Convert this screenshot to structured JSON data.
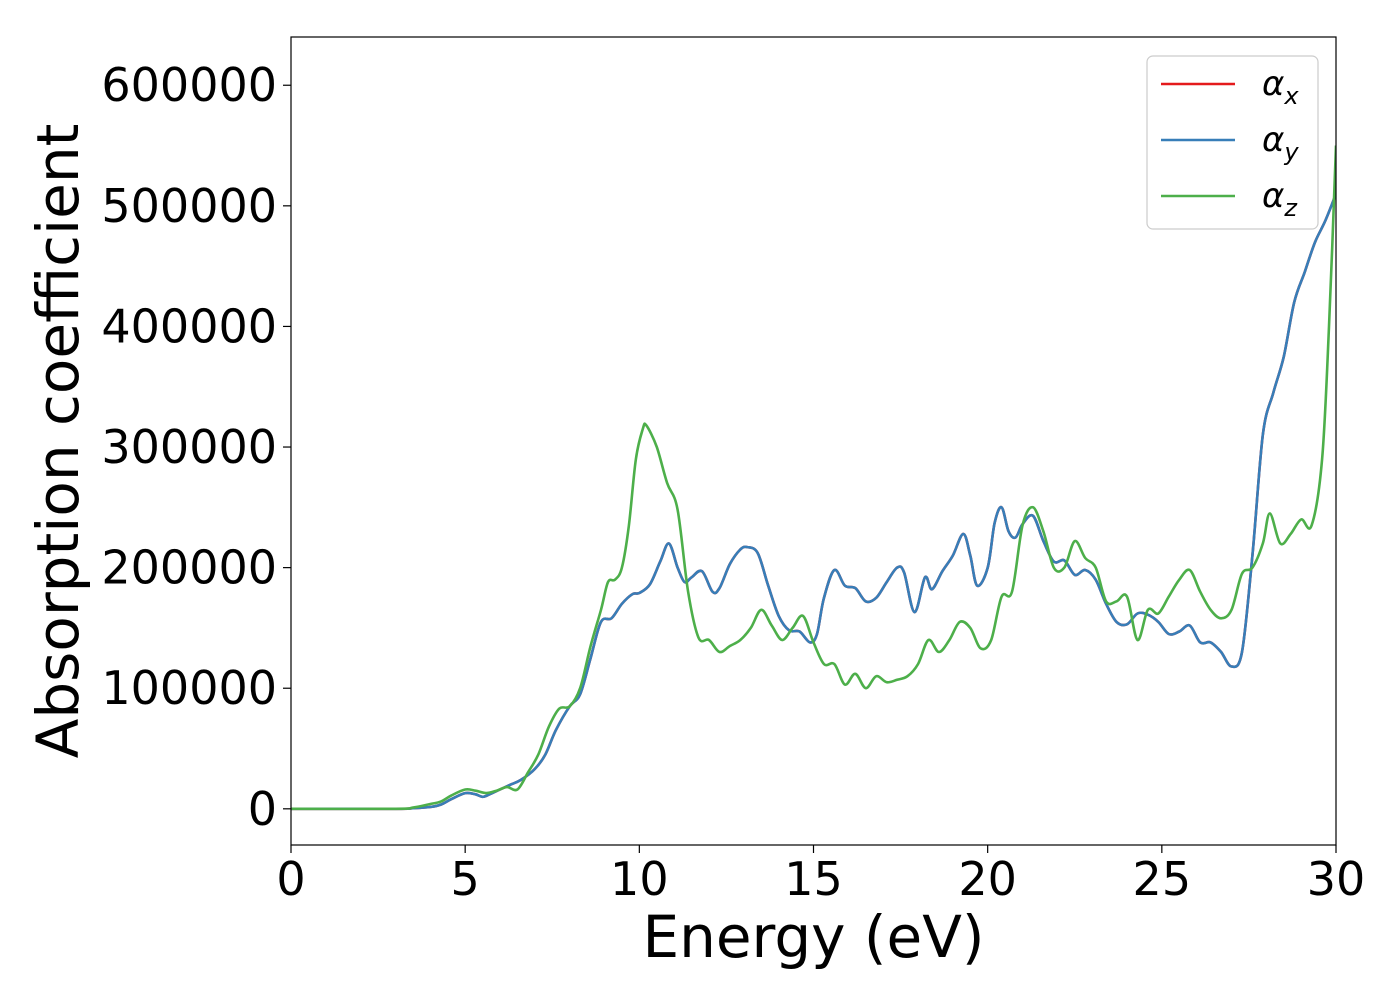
{
  "chart_data": {
    "type": "line",
    "title": "",
    "xlabel": "Energy (eV)",
    "ylabel": "Absorption coefficient",
    "xlim": [
      0,
      30
    ],
    "ylim": [
      -30000,
      640000
    ],
    "xticks": [
      0,
      5,
      10,
      15,
      20,
      25,
      30
    ],
    "xtick_labels": [
      "0",
      "5",
      "10",
      "15",
      "20",
      "25",
      "30"
    ],
    "yticks": [
      0,
      100000,
      200000,
      300000,
      400000,
      500000,
      600000
    ],
    "ytick_labels": [
      "0",
      "100000",
      "200000",
      "300000",
      "400000",
      "500000",
      "600000"
    ],
    "grid": false,
    "legend_position": "top-right",
    "series": [
      {
        "name": "α",
        "subscript": "x",
        "color": "#e41a1c",
        "x": [
          0,
          3,
          3.5,
          4,
          4.3,
          4.6,
          5,
          5.3,
          5.5,
          5.7,
          6,
          6.3,
          6.6,
          7,
          7.3,
          7.6,
          8,
          8.3,
          8.6,
          8.9,
          9.2,
          9.5,
          9.8,
          10,
          10.3,
          10.6,
          10.85,
          11.1,
          11.3,
          11.5,
          11.8,
          12.1,
          12.3,
          12.6,
          12.9,
          13.1,
          13.4,
          13.7,
          14,
          14.3,
          14.6,
          14.9,
          15.1,
          15.3,
          15.6,
          15.9,
          16.2,
          16.5,
          16.8,
          17.1,
          17.4,
          17.6,
          17.9,
          18.2,
          18.4,
          18.7,
          19,
          19.3,
          19.5,
          19.7,
          20,
          20.2,
          20.4,
          20.6,
          20.8,
          21,
          21.3,
          21.6,
          21.9,
          22.2,
          22.5,
          22.8,
          23.1,
          23.4,
          23.7,
          24,
          24.3,
          24.6,
          24.9,
          25.2,
          25.5,
          25.8,
          26.1,
          26.4,
          26.7,
          27,
          27.3,
          27.6,
          27.9,
          28.2,
          28.5,
          28.8,
          29.1,
          29.4,
          29.7,
          30
        ],
        "y": [
          0,
          0,
          500,
          1500,
          3500,
          8000,
          13000,
          12000,
          10000,
          12000,
          16000,
          20000,
          24000,
          33000,
          45000,
          65000,
          85000,
          95000,
          125000,
          155000,
          158000,
          170000,
          178000,
          179000,
          186000,
          205000,
          220000,
          200000,
          188000,
          192000,
          197000,
          180000,
          183000,
          203000,
          215000,
          217000,
          212000,
          185000,
          160000,
          148000,
          147000,
          138000,
          145000,
          175000,
          198000,
          185000,
          183000,
          172000,
          175000,
          188000,
          200000,
          196000,
          163000,
          192000,
          182000,
          197000,
          210000,
          228000,
          210000,
          185000,
          200000,
          237000,
          250000,
          230000,
          225000,
          236000,
          243000,
          222000,
          205000,
          206000,
          194000,
          198000,
          190000,
          170000,
          155000,
          153000,
          162000,
          161000,
          155000,
          145000,
          147000,
          152000,
          138000,
          138000,
          130000,
          118000,
          130000,
          210000,
          310000,
          345000,
          375000,
          420000,
          445000,
          470000,
          488000,
          510000
        ]
      },
      {
        "name": "α",
        "subscript": "y",
        "color": "#377eb8",
        "x": [
          0,
          3,
          3.5,
          4,
          4.3,
          4.6,
          5,
          5.3,
          5.5,
          5.7,
          6,
          6.3,
          6.6,
          7,
          7.3,
          7.6,
          8,
          8.3,
          8.6,
          8.9,
          9.2,
          9.5,
          9.8,
          10,
          10.3,
          10.6,
          10.85,
          11.1,
          11.3,
          11.5,
          11.8,
          12.1,
          12.3,
          12.6,
          12.9,
          13.1,
          13.4,
          13.7,
          14,
          14.3,
          14.6,
          14.9,
          15.1,
          15.3,
          15.6,
          15.9,
          16.2,
          16.5,
          16.8,
          17.1,
          17.4,
          17.6,
          17.9,
          18.2,
          18.4,
          18.7,
          19,
          19.3,
          19.5,
          19.7,
          20,
          20.2,
          20.4,
          20.6,
          20.8,
          21,
          21.3,
          21.6,
          21.9,
          22.2,
          22.5,
          22.8,
          23.1,
          23.4,
          23.7,
          24,
          24.3,
          24.6,
          24.9,
          25.2,
          25.5,
          25.8,
          26.1,
          26.4,
          26.7,
          27,
          27.3,
          27.6,
          27.9,
          28.2,
          28.5,
          28.8,
          29.1,
          29.4,
          29.7,
          30
        ],
        "y": [
          0,
          0,
          500,
          1500,
          3500,
          8000,
          13000,
          12000,
          10000,
          12000,
          16000,
          20000,
          24000,
          33000,
          45000,
          65000,
          85000,
          95000,
          125000,
          155000,
          158000,
          170000,
          178000,
          179000,
          186000,
          205000,
          220000,
          200000,
          188000,
          192000,
          197000,
          180000,
          183000,
          203000,
          215000,
          217000,
          212000,
          185000,
          160000,
          148000,
          147000,
          138000,
          145000,
          175000,
          198000,
          185000,
          183000,
          172000,
          175000,
          188000,
          200000,
          196000,
          163000,
          192000,
          182000,
          197000,
          210000,
          228000,
          210000,
          185000,
          200000,
          237000,
          250000,
          230000,
          225000,
          236000,
          243000,
          222000,
          205000,
          206000,
          194000,
          198000,
          190000,
          170000,
          155000,
          153000,
          162000,
          161000,
          155000,
          145000,
          147000,
          152000,
          138000,
          138000,
          130000,
          118000,
          130000,
          210000,
          310000,
          345000,
          375000,
          420000,
          445000,
          470000,
          488000,
          510000
        ]
      },
      {
        "name": "α",
        "subscript": "z",
        "color": "#4daf4a",
        "x": [
          0,
          3,
          3.5,
          4,
          4.3,
          4.6,
          5,
          5.3,
          5.6,
          5.9,
          6.2,
          6.5,
          6.8,
          7.1,
          7.4,
          7.7,
          8,
          8.3,
          8.6,
          8.9,
          9.1,
          9.3,
          9.5,
          9.7,
          9.9,
          10.1,
          10.2,
          10.5,
          10.8,
          11.1,
          11.4,
          11.7,
          12,
          12.3,
          12.6,
          12.9,
          13.2,
          13.5,
          13.8,
          14.1,
          14.4,
          14.7,
          15,
          15.3,
          15.6,
          15.9,
          16.2,
          16.5,
          16.8,
          17.1,
          17.4,
          17.7,
          18,
          18.3,
          18.6,
          18.9,
          19.2,
          19.5,
          19.8,
          20.1,
          20.4,
          20.7,
          21,
          21.3,
          21.6,
          21.9,
          22.2,
          22.5,
          22.8,
          23.1,
          23.4,
          23.7,
          24,
          24.3,
          24.6,
          24.9,
          25.2,
          25.5,
          25.8,
          26.1,
          26.4,
          26.7,
          27,
          27.3,
          27.6,
          27.9,
          28.1,
          28.4,
          28.7,
          29,
          29.3,
          29.6,
          29.8,
          30
        ],
        "y": [
          0,
          0,
          1000,
          4000,
          6000,
          11000,
          16000,
          15000,
          13000,
          15000,
          18000,
          16000,
          30000,
          45000,
          68000,
          83000,
          85000,
          100000,
          135000,
          165000,
          188000,
          190000,
          200000,
          235000,
          290000,
          315000,
          318000,
          300000,
          270000,
          248000,
          180000,
          142000,
          140000,
          130000,
          135000,
          140000,
          150000,
          165000,
          152000,
          140000,
          150000,
          160000,
          138000,
          120000,
          120000,
          103000,
          112000,
          100000,
          110000,
          105000,
          107000,
          110000,
          120000,
          140000,
          130000,
          140000,
          155000,
          150000,
          133000,
          140000,
          176000,
          180000,
          235000,
          250000,
          230000,
          200000,
          200000,
          222000,
          208000,
          200000,
          172000,
          172000,
          176000,
          140000,
          165000,
          162000,
          176000,
          190000,
          198000,
          180000,
          165000,
          158000,
          165000,
          195000,
          200000,
          220000,
          245000,
          220000,
          228000,
          240000,
          235000,
          290000,
          400000,
          550000
        ]
      }
    ]
  }
}
